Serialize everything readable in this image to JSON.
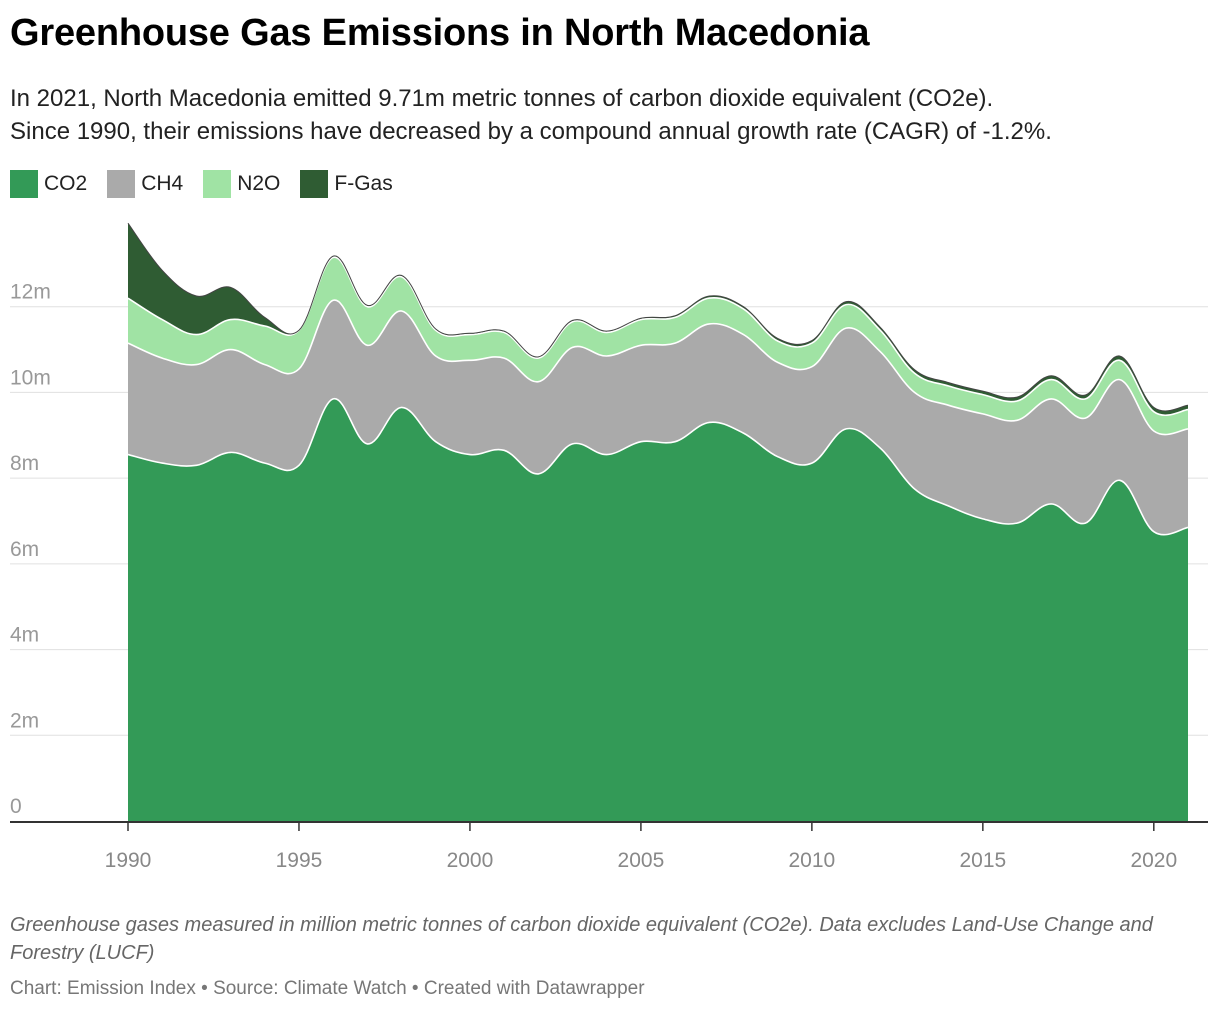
{
  "header": {
    "title": "Greenhouse Gas Emissions in North Macedonia",
    "subtitle_line1": "In 2021, North Macedonia emitted 9.71m metric tonnes of carbon dioxide equivalent (CO2e).",
    "subtitle_line2": "Since 1990, their emissions have decreased by a compound annual growth rate (CAGR) of -1.2%."
  },
  "footer": {
    "notes": "Greenhouse gases measured in million metric tonnes of carbon dioxide equivalent (CO2e). Data excludes Land-Use Change and Forestry (LUCF)",
    "credits": "Chart: Emission Index • Source: Climate Watch • Created with Datawrapper"
  },
  "chart_data": {
    "type": "area",
    "stacked": true,
    "title": "Greenhouse Gas Emissions in North Macedonia",
    "xlabel": "",
    "ylabel": "",
    "x": [
      1990,
      1991,
      1992,
      1993,
      1994,
      1995,
      1996,
      1997,
      1998,
      1999,
      2000,
      2001,
      2002,
      2003,
      2004,
      2005,
      2006,
      2007,
      2008,
      2009,
      2010,
      2011,
      2012,
      2013,
      2014,
      2015,
      2016,
      2017,
      2018,
      2019,
      2020,
      2021
    ],
    "xticks": [
      1990,
      1995,
      2000,
      2005,
      2010,
      2015,
      2020
    ],
    "yticks": [
      0,
      2,
      4,
      6,
      8,
      10,
      12
    ],
    "ytick_labels": [
      "0",
      "2m",
      "4m",
      "6m",
      "8m",
      "10m",
      "12m"
    ],
    "ylim": [
      0,
      14
    ],
    "grid": true,
    "legend_position": "top-left",
    "series": [
      {
        "name": "CO2",
        "color": "#339a57",
        "values": [
          8.55,
          8.35,
          8.3,
          8.6,
          8.35,
          8.3,
          9.85,
          8.8,
          9.65,
          8.85,
          8.55,
          8.65,
          8.1,
          8.8,
          8.55,
          8.85,
          8.85,
          9.3,
          9.05,
          8.5,
          8.35,
          9.15,
          8.7,
          7.75,
          7.35,
          7.05,
          6.95,
          7.4,
          6.95,
          7.95,
          6.75,
          6.85
        ]
      },
      {
        "name": "CH4",
        "color": "#aaaaaa",
        "values": [
          2.6,
          2.45,
          2.35,
          2.4,
          2.3,
          2.25,
          2.3,
          2.3,
          2.25,
          2.0,
          2.2,
          2.15,
          2.15,
          2.25,
          2.3,
          2.25,
          2.3,
          2.3,
          2.3,
          2.2,
          2.25,
          2.35,
          2.25,
          2.25,
          2.35,
          2.45,
          2.4,
          2.45,
          2.45,
          2.35,
          2.35,
          2.3
        ]
      },
      {
        "name": "N2O",
        "color": "#a0e3a4",
        "values": [
          1.05,
          0.9,
          0.7,
          0.7,
          0.9,
          0.9,
          1.0,
          0.9,
          0.8,
          0.6,
          0.6,
          0.6,
          0.55,
          0.6,
          0.55,
          0.6,
          0.6,
          0.6,
          0.6,
          0.5,
          0.55,
          0.55,
          0.5,
          0.45,
          0.45,
          0.45,
          0.45,
          0.45,
          0.45,
          0.45,
          0.45,
          0.45
        ]
      },
      {
        "name": "F-Gas",
        "color": "#2f5c33",
        "values": [
          1.75,
          1.15,
          0.9,
          0.75,
          0.2,
          0.0,
          0.03,
          0.03,
          0.03,
          0.03,
          0.03,
          0.03,
          0.03,
          0.03,
          0.03,
          0.03,
          0.04,
          0.05,
          0.05,
          0.06,
          0.06,
          0.07,
          0.07,
          0.08,
          0.08,
          0.08,
          0.09,
          0.09,
          0.09,
          0.1,
          0.1,
          0.1
        ]
      }
    ]
  }
}
